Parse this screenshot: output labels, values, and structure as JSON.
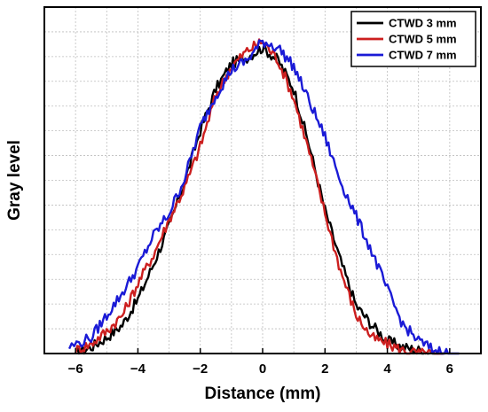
{
  "chart_data": {
    "type": "line",
    "title": "",
    "xlabel": "Distance (mm)",
    "ylabel": "Gray level",
    "xlim": [
      -7,
      7
    ],
    "ylim": [
      0,
      1
    ],
    "xticks": [
      -6,
      -4,
      -2,
      0,
      2,
      4,
      6
    ],
    "xtick_labels": [
      "−6",
      "−4",
      "−2",
      "0",
      "2",
      "4",
      "6"
    ],
    "y_tick_labels_shown": false,
    "grid": true,
    "legend_position": "top-right",
    "series": [
      {
        "name": "CTWD 3 mm",
        "color": "#000000",
        "x": [
          -6.0,
          -5.5,
          -5.0,
          -4.5,
          -4.0,
          -3.5,
          -3.0,
          -2.5,
          -2.0,
          -1.5,
          -1.0,
          -0.5,
          0.0,
          0.5,
          1.0,
          1.5,
          2.0,
          2.5,
          3.0,
          3.5,
          4.0,
          4.5,
          5.0,
          5.5
        ],
        "y": [
          0.0,
          0.02,
          0.05,
          0.09,
          0.17,
          0.28,
          0.4,
          0.54,
          0.7,
          0.83,
          0.91,
          0.93,
          0.96,
          0.92,
          0.83,
          0.65,
          0.45,
          0.29,
          0.15,
          0.09,
          0.04,
          0.02,
          0.01,
          0.0
        ]
      },
      {
        "name": "CTWD 5 mm",
        "color": "#cc1f1f",
        "x": [
          -6.0,
          -5.5,
          -5.0,
          -4.5,
          -4.0,
          -3.5,
          -3.0,
          -2.5,
          -2.0,
          -1.5,
          -1.0,
          -0.5,
          0.0,
          0.5,
          1.0,
          1.5,
          2.0,
          2.5,
          3.0,
          3.5,
          4.0,
          4.5,
          5.0,
          5.5
        ],
        "y": [
          0.01,
          0.03,
          0.07,
          0.12,
          0.22,
          0.31,
          0.42,
          0.52,
          0.65,
          0.81,
          0.9,
          0.95,
          0.98,
          0.92,
          0.8,
          0.63,
          0.44,
          0.26,
          0.12,
          0.05,
          0.03,
          0.01,
          0.0,
          0.0
        ]
      },
      {
        "name": "CTWD 7 mm",
        "color": "#1a1ad6",
        "x": [
          -6.2,
          -5.5,
          -5.0,
          -4.5,
          -4.0,
          -3.5,
          -3.0,
          -2.5,
          -2.0,
          -1.5,
          -1.0,
          -0.5,
          0.0,
          0.5,
          1.0,
          1.5,
          2.0,
          2.5,
          3.0,
          3.5,
          4.0,
          4.5,
          5.0,
          5.5,
          6.0
        ],
        "y": [
          0.02,
          0.05,
          0.12,
          0.19,
          0.27,
          0.37,
          0.44,
          0.55,
          0.71,
          0.81,
          0.89,
          0.92,
          0.98,
          0.96,
          0.9,
          0.79,
          0.68,
          0.54,
          0.43,
          0.32,
          0.2,
          0.09,
          0.04,
          0.01,
          0.0
        ]
      }
    ]
  }
}
